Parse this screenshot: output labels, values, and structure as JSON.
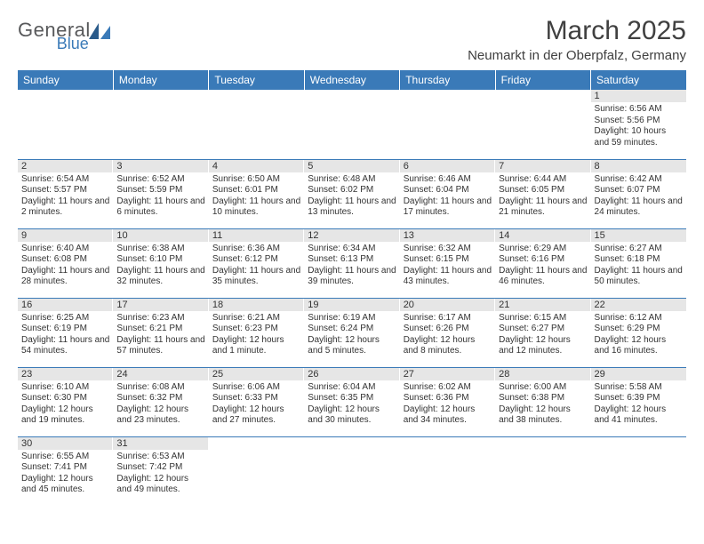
{
  "logo": {
    "general": "General",
    "blue": "Blue"
  },
  "title": "March 2025",
  "location": "Neumarkt in der Oberpfalz, Germany",
  "colors": {
    "header_bg": "#3a7ab8",
    "header_text": "#ffffff",
    "daybar_bg": "#e6e6e6",
    "border": "#3a7ab8",
    "body_bg": "#ffffff",
    "text": "#333333",
    "logo_gray": "#58595b",
    "logo_blue": "#3a7ab8"
  },
  "weekdays": [
    "Sunday",
    "Monday",
    "Tuesday",
    "Wednesday",
    "Thursday",
    "Friday",
    "Saturday"
  ],
  "weeks": [
    [
      null,
      null,
      null,
      null,
      null,
      null,
      {
        "n": "1",
        "sr": "Sunrise: 6:56 AM",
        "ss": "Sunset: 5:56 PM",
        "dl": "Daylight: 10 hours and 59 minutes."
      }
    ],
    [
      {
        "n": "2",
        "sr": "Sunrise: 6:54 AM",
        "ss": "Sunset: 5:57 PM",
        "dl": "Daylight: 11 hours and 2 minutes."
      },
      {
        "n": "3",
        "sr": "Sunrise: 6:52 AM",
        "ss": "Sunset: 5:59 PM",
        "dl": "Daylight: 11 hours and 6 minutes."
      },
      {
        "n": "4",
        "sr": "Sunrise: 6:50 AM",
        "ss": "Sunset: 6:01 PM",
        "dl": "Daylight: 11 hours and 10 minutes."
      },
      {
        "n": "5",
        "sr": "Sunrise: 6:48 AM",
        "ss": "Sunset: 6:02 PM",
        "dl": "Daylight: 11 hours and 13 minutes."
      },
      {
        "n": "6",
        "sr": "Sunrise: 6:46 AM",
        "ss": "Sunset: 6:04 PM",
        "dl": "Daylight: 11 hours and 17 minutes."
      },
      {
        "n": "7",
        "sr": "Sunrise: 6:44 AM",
        "ss": "Sunset: 6:05 PM",
        "dl": "Daylight: 11 hours and 21 minutes."
      },
      {
        "n": "8",
        "sr": "Sunrise: 6:42 AM",
        "ss": "Sunset: 6:07 PM",
        "dl": "Daylight: 11 hours and 24 minutes."
      }
    ],
    [
      {
        "n": "9",
        "sr": "Sunrise: 6:40 AM",
        "ss": "Sunset: 6:08 PM",
        "dl": "Daylight: 11 hours and 28 minutes."
      },
      {
        "n": "10",
        "sr": "Sunrise: 6:38 AM",
        "ss": "Sunset: 6:10 PM",
        "dl": "Daylight: 11 hours and 32 minutes."
      },
      {
        "n": "11",
        "sr": "Sunrise: 6:36 AM",
        "ss": "Sunset: 6:12 PM",
        "dl": "Daylight: 11 hours and 35 minutes."
      },
      {
        "n": "12",
        "sr": "Sunrise: 6:34 AM",
        "ss": "Sunset: 6:13 PM",
        "dl": "Daylight: 11 hours and 39 minutes."
      },
      {
        "n": "13",
        "sr": "Sunrise: 6:32 AM",
        "ss": "Sunset: 6:15 PM",
        "dl": "Daylight: 11 hours and 43 minutes."
      },
      {
        "n": "14",
        "sr": "Sunrise: 6:29 AM",
        "ss": "Sunset: 6:16 PM",
        "dl": "Daylight: 11 hours and 46 minutes."
      },
      {
        "n": "15",
        "sr": "Sunrise: 6:27 AM",
        "ss": "Sunset: 6:18 PM",
        "dl": "Daylight: 11 hours and 50 minutes."
      }
    ],
    [
      {
        "n": "16",
        "sr": "Sunrise: 6:25 AM",
        "ss": "Sunset: 6:19 PM",
        "dl": "Daylight: 11 hours and 54 minutes."
      },
      {
        "n": "17",
        "sr": "Sunrise: 6:23 AM",
        "ss": "Sunset: 6:21 PM",
        "dl": "Daylight: 11 hours and 57 minutes."
      },
      {
        "n": "18",
        "sr": "Sunrise: 6:21 AM",
        "ss": "Sunset: 6:23 PM",
        "dl": "Daylight: 12 hours and 1 minute."
      },
      {
        "n": "19",
        "sr": "Sunrise: 6:19 AM",
        "ss": "Sunset: 6:24 PM",
        "dl": "Daylight: 12 hours and 5 minutes."
      },
      {
        "n": "20",
        "sr": "Sunrise: 6:17 AM",
        "ss": "Sunset: 6:26 PM",
        "dl": "Daylight: 12 hours and 8 minutes."
      },
      {
        "n": "21",
        "sr": "Sunrise: 6:15 AM",
        "ss": "Sunset: 6:27 PM",
        "dl": "Daylight: 12 hours and 12 minutes."
      },
      {
        "n": "22",
        "sr": "Sunrise: 6:12 AM",
        "ss": "Sunset: 6:29 PM",
        "dl": "Daylight: 12 hours and 16 minutes."
      }
    ],
    [
      {
        "n": "23",
        "sr": "Sunrise: 6:10 AM",
        "ss": "Sunset: 6:30 PM",
        "dl": "Daylight: 12 hours and 19 minutes."
      },
      {
        "n": "24",
        "sr": "Sunrise: 6:08 AM",
        "ss": "Sunset: 6:32 PM",
        "dl": "Daylight: 12 hours and 23 minutes."
      },
      {
        "n": "25",
        "sr": "Sunrise: 6:06 AM",
        "ss": "Sunset: 6:33 PM",
        "dl": "Daylight: 12 hours and 27 minutes."
      },
      {
        "n": "26",
        "sr": "Sunrise: 6:04 AM",
        "ss": "Sunset: 6:35 PM",
        "dl": "Daylight: 12 hours and 30 minutes."
      },
      {
        "n": "27",
        "sr": "Sunrise: 6:02 AM",
        "ss": "Sunset: 6:36 PM",
        "dl": "Daylight: 12 hours and 34 minutes."
      },
      {
        "n": "28",
        "sr": "Sunrise: 6:00 AM",
        "ss": "Sunset: 6:38 PM",
        "dl": "Daylight: 12 hours and 38 minutes."
      },
      {
        "n": "29",
        "sr": "Sunrise: 5:58 AM",
        "ss": "Sunset: 6:39 PM",
        "dl": "Daylight: 12 hours and 41 minutes."
      }
    ],
    [
      {
        "n": "30",
        "sr": "Sunrise: 6:55 AM",
        "ss": "Sunset: 7:41 PM",
        "dl": "Daylight: 12 hours and 45 minutes."
      },
      {
        "n": "31",
        "sr": "Sunrise: 6:53 AM",
        "ss": "Sunset: 7:42 PM",
        "dl": "Daylight: 12 hours and 49 minutes."
      },
      null,
      null,
      null,
      null,
      null
    ]
  ]
}
